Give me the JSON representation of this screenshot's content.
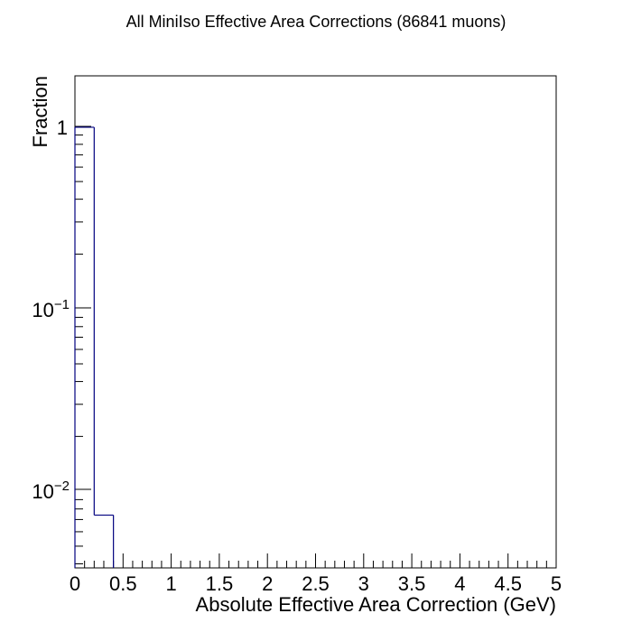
{
  "chart_data": {
    "type": "bar",
    "title": "All MiniIso Effective Area Corrections (86841 muons)",
    "xlabel": "Absolute Effective Area Correction (GeV)",
    "ylabel": "Fraction",
    "x_tick_labels": [
      "0",
      "0.5",
      "1",
      "1.5",
      "2",
      "2.5",
      "3",
      "3.5",
      "4",
      "4.5",
      "5"
    ],
    "y_tick_labels": [
      {
        "base": "1",
        "exp": ""
      },
      {
        "base": "10",
        "exp": "−1"
      },
      {
        "base": "10",
        "exp": "−2"
      }
    ],
    "xlim": [
      0,
      5
    ],
    "ylim": [
      0.0038,
      1.9
    ],
    "log_y": true,
    "grid": false,
    "line_color": "#00007f",
    "bin_edges": [
      0,
      0.2,
      0.4
    ],
    "values": [
      0.9926,
      0.0074
    ]
  }
}
